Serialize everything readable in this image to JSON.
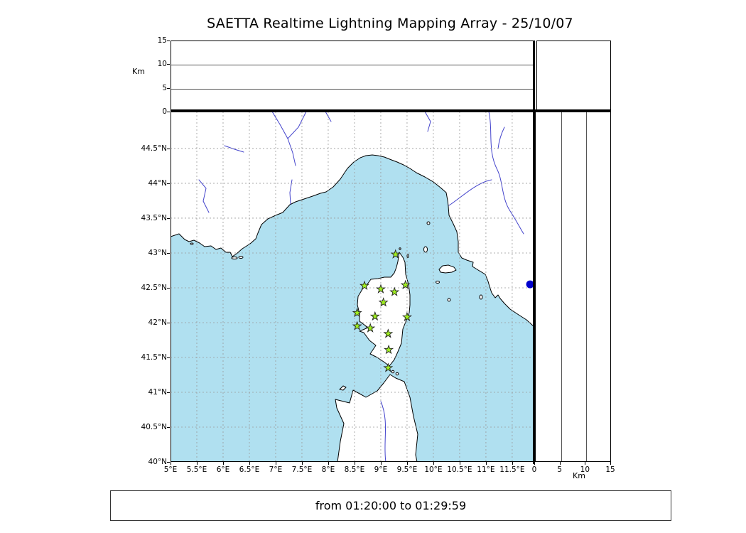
{
  "title": "SAETTA Realtime Lightning Mapping Array - 25/10/07",
  "footer": {
    "time_range": "from 01:20:00 to 01:29:59"
  },
  "axes": {
    "km_label": "Km",
    "altitude_max": 15,
    "altitude_ticks": [
      0,
      5,
      10,
      15
    ],
    "altitude_gridlines": [
      5,
      10
    ],
    "lon_range": [
      5,
      11.92
    ],
    "lat_range": [
      40,
      45.03
    ],
    "lon_ticks": [
      {
        "value": 5,
        "label": "5°E"
      },
      {
        "value": 5.5,
        "label": "5.5°E"
      },
      {
        "value": 6,
        "label": "6°E"
      },
      {
        "value": 6.5,
        "label": "6.5°E"
      },
      {
        "value": 7,
        "label": "7°E"
      },
      {
        "value": 7.5,
        "label": "7.5°E"
      },
      {
        "value": 8,
        "label": "8°E"
      },
      {
        "value": 8.5,
        "label": "8.5°E"
      },
      {
        "value": 9,
        "label": "9°E"
      },
      {
        "value": 9.5,
        "label": "9.5°E"
      },
      {
        "value": 10,
        "label": "10°E"
      },
      {
        "value": 10.5,
        "label": "10.5°E"
      },
      {
        "value": 11,
        "label": "11°E"
      },
      {
        "value": 11.5,
        "label": "11.5°E"
      }
    ],
    "lat_ticks": [
      {
        "value": 40,
        "label": "40°N"
      },
      {
        "value": 40.5,
        "label": "40.5°N"
      },
      {
        "value": 41,
        "label": "41°N"
      },
      {
        "value": 41.5,
        "label": "41.5°N"
      },
      {
        "value": 42,
        "label": "42°N"
      },
      {
        "value": 42.5,
        "label": "42.5°N"
      },
      {
        "value": 43,
        "label": "43°N"
      },
      {
        "value": 43.5,
        "label": "43.5°N"
      },
      {
        "value": 44,
        "label": "44°N"
      },
      {
        "value": 44.5,
        "label": "44.5°N"
      }
    ]
  },
  "colors": {
    "sea": "#b0e0f0",
    "land": "#ffffff",
    "coastline": "#000000",
    "river": "#4444cc",
    "gridline": "#999999",
    "station_fill": "#a0f020",
    "station_edge": "#222222",
    "source_dot": "#0000cc"
  },
  "chart_data": {
    "type": "scatter",
    "title": "SAETTA Realtime Lightning Mapping Array - 25/10/07",
    "time_window": {
      "start": "01:20:00",
      "end": "01:29:59"
    },
    "panels": [
      {
        "name": "altitude-vs-longitude",
        "ylabel": "Km",
        "ylim": [
          0,
          15
        ],
        "grid": "horizontal lines at 5 and 10 km",
        "points": []
      },
      {
        "name": "map-lon-lat",
        "xlim": [
          5,
          11.92
        ],
        "ylim": [
          40,
          45.03
        ],
        "grid": "dashed every 0.5 degree"
      },
      {
        "name": "altitude-vs-latitude",
        "xlabel": "Km",
        "xlim": [
          0,
          15
        ],
        "grid": "vertical lines at 5 and 10 km",
        "points": []
      }
    ],
    "stations": [
      {
        "lon": 9.28,
        "lat": 42.98
      },
      {
        "lon": 8.69,
        "lat": 42.53
      },
      {
        "lon": 9.0,
        "lat": 42.48
      },
      {
        "lon": 9.26,
        "lat": 42.44
      },
      {
        "lon": 9.47,
        "lat": 42.54
      },
      {
        "lon": 9.05,
        "lat": 42.29
      },
      {
        "lon": 8.55,
        "lat": 42.14
      },
      {
        "lon": 8.89,
        "lat": 42.09
      },
      {
        "lon": 9.5,
        "lat": 42.08
      },
      {
        "lon": 8.55,
        "lat": 41.95
      },
      {
        "lon": 8.8,
        "lat": 41.92
      },
      {
        "lon": 9.14,
        "lat": 41.84
      },
      {
        "lon": 9.15,
        "lat": 41.61
      },
      {
        "lon": 9.14,
        "lat": 41.35
      }
    ],
    "sources": [
      {
        "lon": 11.84,
        "lat": 42.55
      }
    ]
  }
}
